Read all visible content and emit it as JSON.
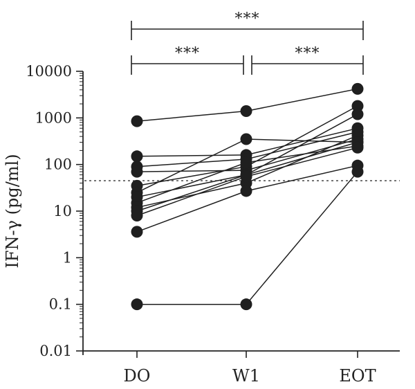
{
  "chart_data": {
    "type": "line",
    "title": "",
    "xlabel": "",
    "ylabel": "IFN-γ (pg/ml)",
    "y_scale": "log",
    "ylim": [
      0.01,
      10000
    ],
    "y_ticks": [
      0.01,
      0.1,
      1,
      10,
      100,
      1000,
      10000
    ],
    "y_tick_labels": [
      "0.01",
      "0.1",
      "1",
      "10",
      "100",
      "1000",
      "10000"
    ],
    "categories": [
      "DO",
      "W1",
      "EOT"
    ],
    "reference_line": {
      "value": 45,
      "style": "dotted"
    },
    "grid": false,
    "legend": "none",
    "marker_color": "#1f1f1f",
    "series": [
      {
        "values": [
          850,
          1400,
          4200
        ]
      },
      {
        "values": [
          150,
          160,
          600
        ]
      },
      {
        "values": [
          90,
          130,
          500
        ]
      },
      {
        "values": [
          70,
          75,
          350
        ]
      },
      {
        "values": [
          35,
          90,
          1800
        ]
      },
      {
        "values": [
          25,
          350,
          300
        ]
      },
      {
        "values": [
          20,
          60,
          1200
        ]
      },
      {
        "values": [
          15,
          110,
          250
        ]
      },
      {
        "values": [
          12,
          40,
          420
        ]
      },
      {
        "values": [
          10,
          60,
          300
        ]
      },
      {
        "values": [
          8,
          55,
          230
        ]
      },
      {
        "values": [
          3.6,
          27,
          95
        ]
      },
      {
        "values": [
          0.1,
          0.1,
          70
        ]
      }
    ],
    "significance": [
      {
        "from": "DO",
        "to": "EOT",
        "label": "***"
      },
      {
        "from": "DO",
        "to": "W1",
        "label": "***"
      },
      {
        "from": "W1",
        "to": "EOT",
        "label": "***"
      }
    ]
  }
}
